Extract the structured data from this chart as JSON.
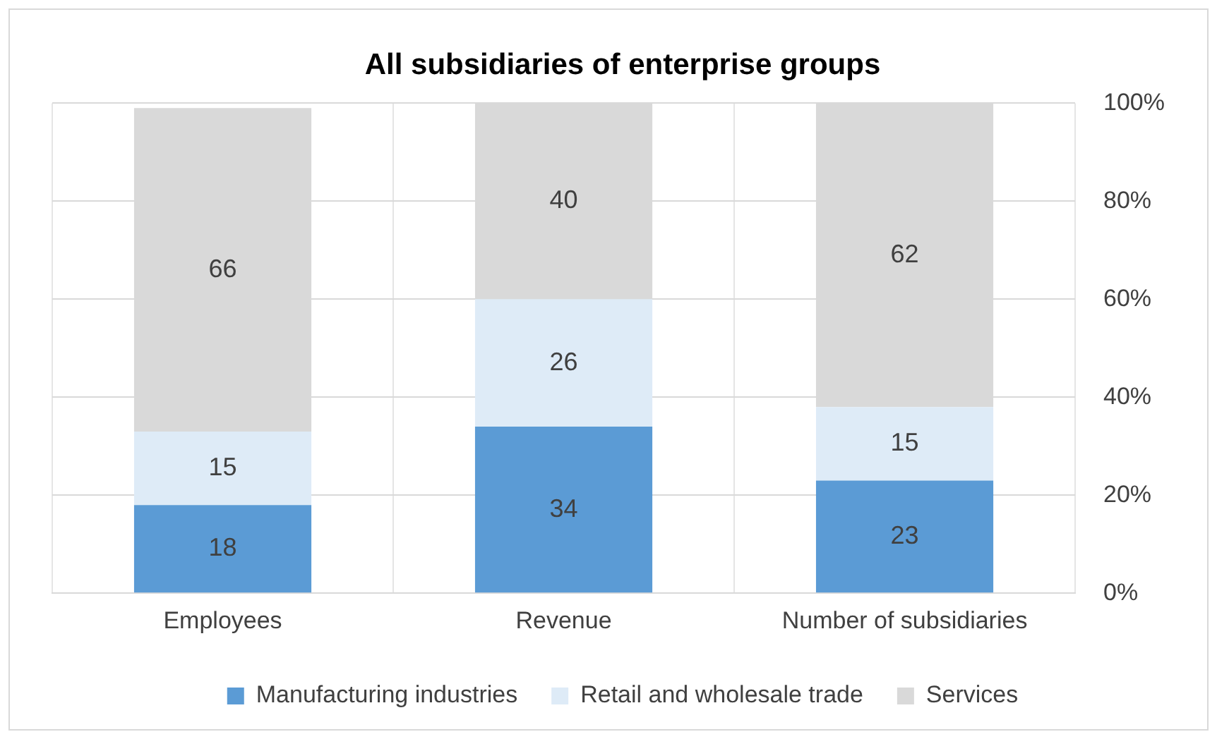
{
  "chart_data": {
    "type": "bar",
    "title": "All subsidiaries of enterprise groups",
    "categories": [
      "Employees",
      "Revenue",
      "Number of subsidiaries"
    ],
    "series": [
      {
        "name": "Manufacturing industries",
        "color": "#5b9bd5",
        "values": [
          18,
          34,
          23
        ]
      },
      {
        "name": "Retail and wholesale trade",
        "color": "#deebf7",
        "values": [
          15,
          26,
          15
        ]
      },
      {
        "name": "Services",
        "color": "#d9d9d9",
        "values": [
          66,
          40,
          62
        ]
      }
    ],
    "stacked": true,
    "ylim": [
      0,
      100
    ],
    "yticks": [
      {
        "value": 0,
        "label": "0%"
      },
      {
        "value": 20,
        "label": "20%"
      },
      {
        "value": 40,
        "label": "40%"
      },
      {
        "value": 60,
        "label": "60%"
      },
      {
        "value": 80,
        "label": "80%"
      },
      {
        "value": 100,
        "label": "100%"
      }
    ],
    "grid": true,
    "legend": "bottom",
    "data_labels": true
  }
}
